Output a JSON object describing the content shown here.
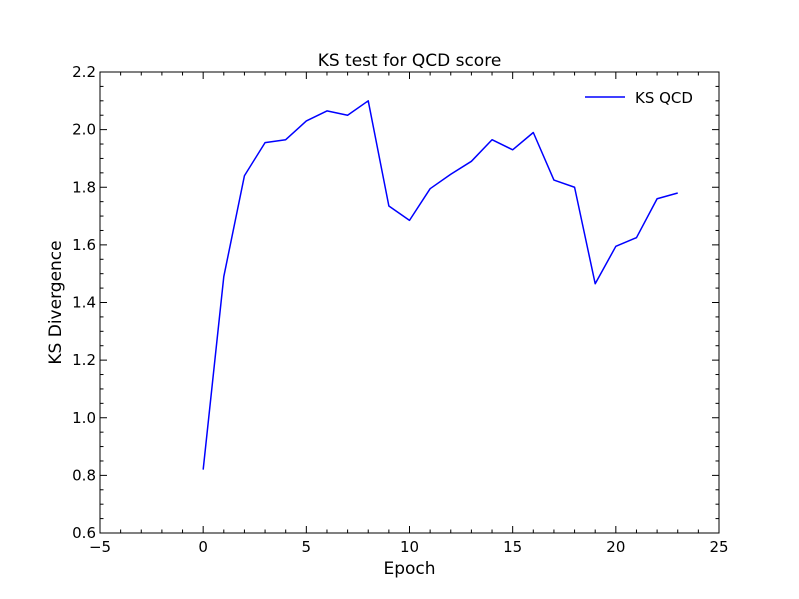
{
  "chart_data": {
    "type": "line",
    "title": "KS test for QCD score",
    "xlabel": "Epoch",
    "ylabel": "KS Divergence",
    "xlim": [
      -5,
      25
    ],
    "ylim": [
      0.6,
      2.2
    ],
    "x_ticks": [
      "−5",
      "0",
      "5",
      "10",
      "15",
      "20",
      "25"
    ],
    "y_ticks": [
      "0.6",
      "0.8",
      "1.0",
      "1.2",
      "1.4",
      "1.6",
      "1.8",
      "2.0",
      "2.2"
    ],
    "grid": false,
    "legend_position": "top-right",
    "series": [
      {
        "name": "KS QCD",
        "color": "#0000ff",
        "x": [
          0,
          1,
          2,
          3,
          4,
          5,
          6,
          7,
          8,
          9,
          10,
          11,
          12,
          13,
          14,
          15,
          16,
          17,
          18,
          19,
          20,
          21,
          22,
          23
        ],
        "y": [
          0.82,
          1.49,
          1.84,
          1.955,
          1.965,
          2.03,
          2.065,
          2.05,
          2.1,
          1.735,
          1.685,
          1.795,
          1.845,
          1.89,
          1.965,
          1.93,
          1.99,
          1.825,
          1.8,
          1.465,
          1.595,
          1.625,
          1.76,
          1.78
        ]
      }
    ]
  }
}
